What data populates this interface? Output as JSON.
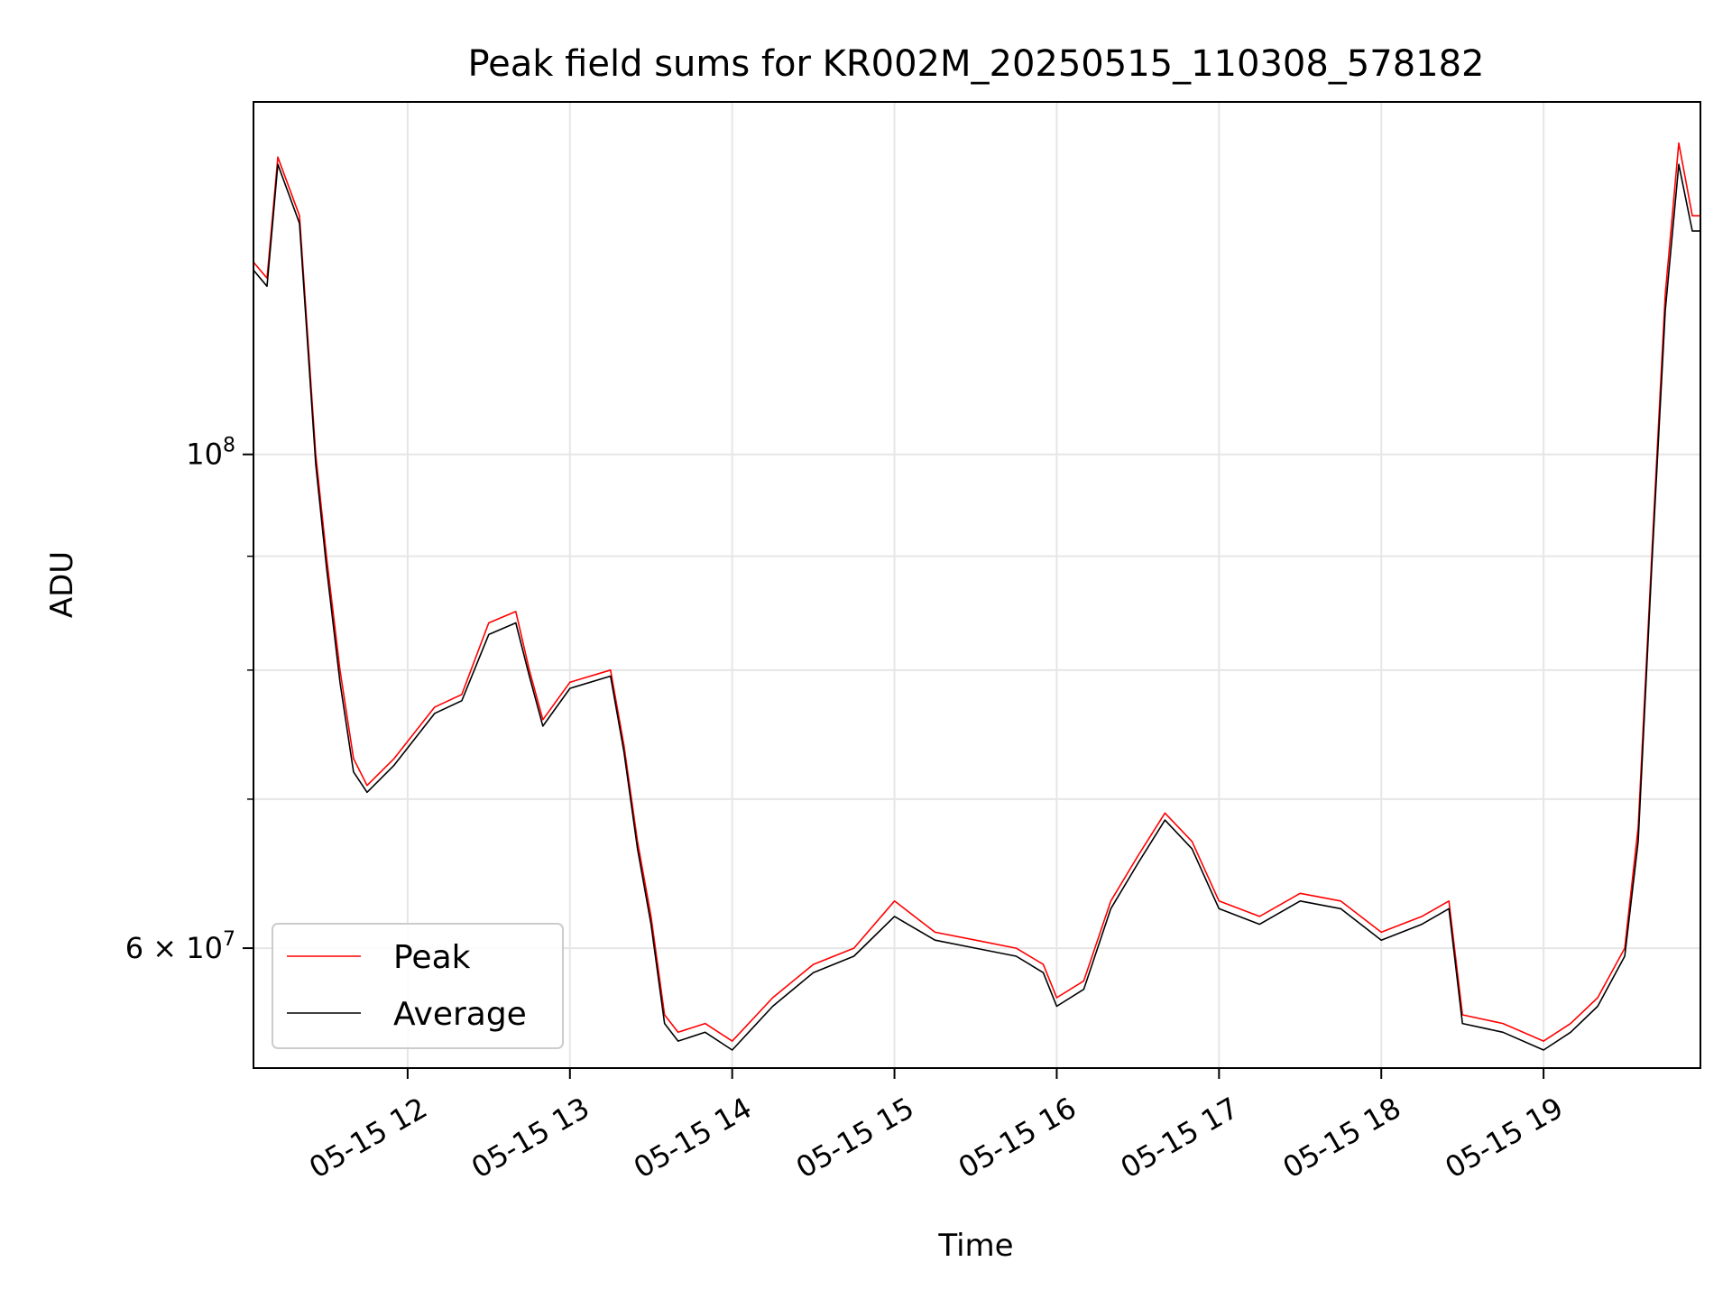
{
  "chart_data": {
    "type": "line",
    "title": "Peak field sums for KR002M_20250515_110308_578182",
    "xlabel": "Time",
    "ylabel": "ADU",
    "y_scale": "log",
    "grid": true,
    "legend_position": "lower-left",
    "x_range": [
      "2025-05-15 11:03",
      "2025-05-15 19:58"
    ],
    "y_range": [
      53000000,
      144000000
    ],
    "x_tick_labels": [
      "05-15 12",
      "05-15 13",
      "05-15 14",
      "05-15 15",
      "05-15 16",
      "05-15 17",
      "05-15 18",
      "05-15 19"
    ],
    "x_tick_values": [
      "2025-05-15 12:00",
      "2025-05-15 13:00",
      "2025-05-15 14:00",
      "2025-05-15 15:00",
      "2025-05-15 16:00",
      "2025-05-15 17:00",
      "2025-05-15 18:00",
      "2025-05-15 19:00"
    ],
    "y_major_ticks": [
      {
        "value": 100000000,
        "label_base": "10",
        "label_exp": "8"
      },
      {
        "value": 60000000,
        "label_base": "6 × 10",
        "label_exp": "7"
      }
    ],
    "y_minor_ticks": [
      70000000,
      80000000,
      90000000
    ],
    "x": [
      "2025-05-15 11:03",
      "2025-05-15 11:08",
      "2025-05-15 11:12",
      "2025-05-15 11:20",
      "2025-05-15 11:26",
      "2025-05-15 11:30",
      "2025-05-15 11:35",
      "2025-05-15 11:40",
      "2025-05-15 11:45",
      "2025-05-15 11:55",
      "2025-05-15 12:10",
      "2025-05-15 12:20",
      "2025-05-15 12:30",
      "2025-05-15 12:40",
      "2025-05-15 12:45",
      "2025-05-15 12:50",
      "2025-05-15 13:00",
      "2025-05-15 13:15",
      "2025-05-15 13:20",
      "2025-05-15 13:25",
      "2025-05-15 13:30",
      "2025-05-15 13:35",
      "2025-05-15 13:40",
      "2025-05-15 13:50",
      "2025-05-15 14:00",
      "2025-05-15 14:15",
      "2025-05-15 14:30",
      "2025-05-15 14:45",
      "2025-05-15 15:00",
      "2025-05-15 15:15",
      "2025-05-15 15:30",
      "2025-05-15 15:45",
      "2025-05-15 15:55",
      "2025-05-15 16:00",
      "2025-05-15 16:10",
      "2025-05-15 16:20",
      "2025-05-15 16:30",
      "2025-05-15 16:40",
      "2025-05-15 16:50",
      "2025-05-15 17:00",
      "2025-05-15 17:15",
      "2025-05-15 17:30",
      "2025-05-15 17:45",
      "2025-05-15 18:00",
      "2025-05-15 18:15",
      "2025-05-15 18:25",
      "2025-05-15 18:30",
      "2025-05-15 18:45",
      "2025-05-15 19:00",
      "2025-05-15 19:10",
      "2025-05-15 19:20",
      "2025-05-15 19:30",
      "2025-05-15 19:35",
      "2025-05-15 19:40",
      "2025-05-15 19:45",
      "2025-05-15 19:50",
      "2025-05-15 19:55",
      "2025-05-15 19:58"
    ],
    "series": [
      {
        "name": "Peak",
        "color": "#ff0000",
        "values": [
          122000000,
          120000000,
          136000000,
          128000000,
          100000000,
          90000000,
          80000000,
          73000000,
          71000000,
          73000000,
          77000000,
          78000000,
          84000000,
          85000000,
          80000000,
          76000000,
          79000000,
          80000000,
          74000000,
          67000000,
          62000000,
          56000000,
          55000000,
          55500000,
          54500000,
          57000000,
          59000000,
          60000000,
          63000000,
          61000000,
          60500000,
          60000000,
          59000000,
          57000000,
          58000000,
          63000000,
          66000000,
          69000000,
          67000000,
          63000000,
          62000000,
          63500000,
          63000000,
          61000000,
          62000000,
          63000000,
          56000000,
          55500000,
          54500000,
          55500000,
          57000000,
          60000000,
          68000000,
          90000000,
          118000000,
          138000000,
          128000000,
          128000000
        ]
      },
      {
        "name": "Average",
        "color": "#000000",
        "values": [
          121000000,
          119000000,
          135000000,
          127000000,
          99000000,
          89000000,
          79000000,
          72000000,
          70500000,
          72500000,
          76500000,
          77500000,
          83000000,
          84000000,
          79500000,
          75500000,
          78500000,
          79500000,
          73500000,
          66500000,
          61500000,
          55500000,
          54500000,
          55000000,
          54000000,
          56500000,
          58500000,
          59500000,
          62000000,
          60500000,
          60000000,
          59500000,
          58500000,
          56500000,
          57500000,
          62500000,
          65500000,
          68500000,
          66500000,
          62500000,
          61500000,
          63000000,
          62500000,
          60500000,
          61500000,
          62500000,
          55500000,
          55000000,
          54000000,
          55000000,
          56500000,
          59500000,
          67000000,
          89000000,
          116000000,
          135000000,
          126000000,
          126000000
        ]
      }
    ]
  }
}
